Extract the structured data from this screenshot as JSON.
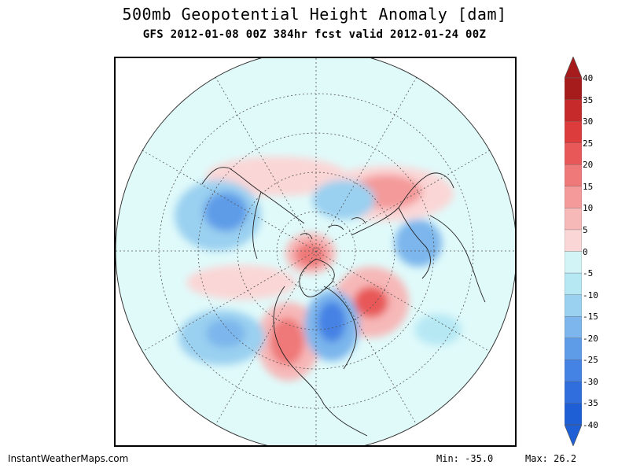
{
  "header": {
    "title": "500mb Geopotential Height Anomaly [dam]",
    "subtitle": "GFS 2012-01-08 00Z 384hr fcst valid 2012-01-24 00Z"
  },
  "colorbar": {
    "labels": [
      "40",
      "35",
      "30",
      "25",
      "20",
      "15",
      "10",
      "5",
      "0",
      "-5",
      "-10",
      "-15",
      "-20",
      "-25",
      "-30",
      "-35",
      "-40"
    ],
    "colors_top_to_bottom": [
      "#a61c1c",
      "#c62a2a",
      "#dc3c3c",
      "#e85858",
      "#ef7878",
      "#f49a9a",
      "#f7b8b8",
      "#fbd6d6",
      "#ffffff",
      "#d2f4f6",
      "#b6e8f4",
      "#9ad0f0",
      "#7cb6ec",
      "#5e9ce8",
      "#4482e4",
      "#2f6edc",
      "#1f5fd6"
    ]
  },
  "footer": {
    "site": "InstantWeatherMaps.com",
    "min_label": "Min:",
    "min_value": "-35.0",
    "max_label": "Max:",
    "max_value": "26.2"
  },
  "map": {
    "projection": "north polar stereographic",
    "background": "#e0fafa"
  }
}
